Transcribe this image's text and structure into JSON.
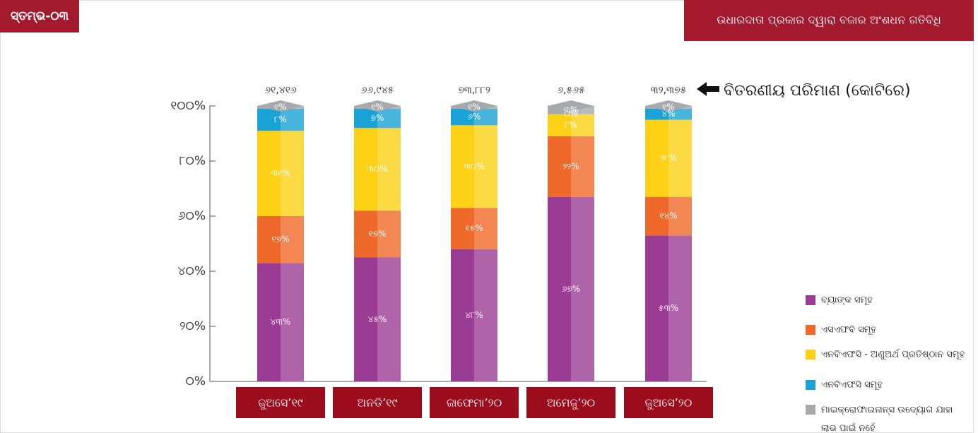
{
  "chart_data": {
    "type": "stacked_bar",
    "badge": "ସ୍ତମ୍ଭ-୦୩",
    "title": "ଉଧାରଦାତା ପ୍ରକାର ଦ୍ୱାରା ବଜାର ଅଂଶଧନ ଗତିବିଧି",
    "annotation": "ବିତରଣୀୟ ପରିମାଣ (କୋଟିରେ)",
    "categories": [
      "ଜୁଅସେ’୧୯",
      "ଅନଡି’୧୯",
      "ଜାଫେମା’୨୦",
      "ଅମେଜୁ’୨୦",
      "ଜୁଅସେ’୨୦"
    ],
    "totals": {
      "values": [
        61416,
        66945,
        73882,
        6565,
        32375
      ],
      "value_labels": [
        "୬୧,୪୧୬",
        "୬୬,୯୪୫",
        "୭୩,୮୮୨",
        "୬,୫୬୫",
        "୩୨,୩୭୫"
      ]
    },
    "ylim": [
      0,
      100
    ],
    "yticks": [
      {
        "value": 0,
        "label": "୦%"
      },
      {
        "value": 20,
        "label": "୨୦%"
      },
      {
        "value": 40,
        "label": "୪୦%"
      },
      {
        "value": 60,
        "label": "୬୦%"
      },
      {
        "value": 80,
        "label": "୮୦%"
      },
      {
        "value": 100,
        "label": "୧୦୦%"
      }
    ],
    "series": [
      {
        "name": "ବ୍ୟାଙ୍କ ସମୂହ",
        "color": "#9b3c94",
        "values": [
          43,
          45,
          48,
          67,
          53
        ],
        "value_labels": [
          "୪୩%",
          "୪୫%",
          "୪୮%",
          "୬୭%",
          "୫୩%"
        ]
      },
      {
        "name": "ଏସଏଫବି ସମୂହ",
        "color": "#ef6a2a",
        "values": [
          17,
          17,
          15,
          22,
          14
        ],
        "value_labels": [
          "୧୭%",
          "୧୭%",
          "୧୫%",
          "୨୨%",
          "୧୪%"
        ]
      },
      {
        "name": "ଏନବିଏଫସି - ଅଣୁଅର୍ଥ ପ୍ରତିଷ୍ଠାନ ସମୂହ",
        "color": "#fcd116",
        "values": [
          31,
          30,
          30,
          8,
          28
        ],
        "value_labels": [
          "୩୧%",
          "୩୦%",
          "୩୦%",
          "୮%",
          "୨୮%"
        ]
      },
      {
        "name": "ଏନବିଏଫସି ସମୂହ",
        "color": "#1ba3d8",
        "values": [
          8,
          7,
          6,
          0,
          4
        ],
        "value_labels": [
          "୮%",
          "୭%",
          "୬%",
          "୦%",
          "୪%"
        ]
      },
      {
        "name": "ମାଇକ୍ରୋଫାଇନାନ୍ସ ଉଦ୍ୟୋଗ ଯାହା ଲାଭ ପାଇଁ ନହେଁ",
        "color": "#a7a9ac",
        "values": [
          1,
          1,
          1,
          3,
          1
        ],
        "value_labels": [
          "୧%",
          "୧%",
          "୧%",
          "୩%",
          "୧%"
        ]
      }
    ]
  }
}
